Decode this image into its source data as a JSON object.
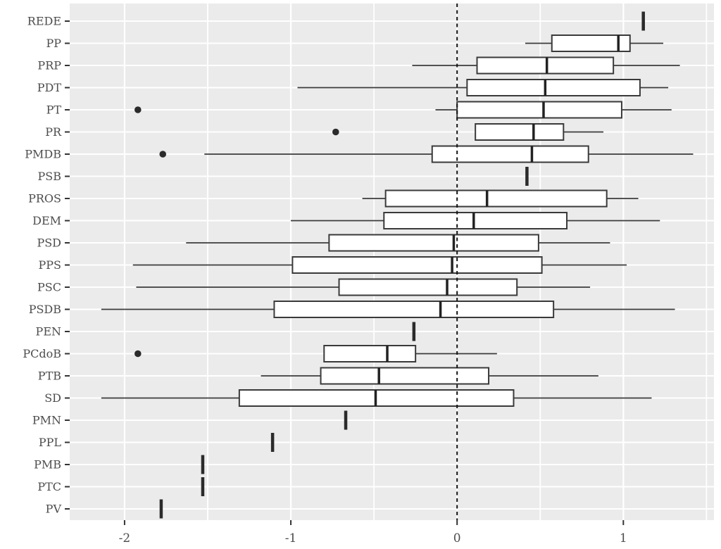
{
  "figure": {
    "background": "#FFFFFF",
    "panel_background": "#EBEBEB",
    "grid_color": "#FFFFFF",
    "box_fill": "#FFFFFF",
    "box_stroke": "#3A3A3A",
    "median_color": "#222222",
    "point_color": "#2B2B2B",
    "axis_text_color": "#4D4D4D",
    "tick_color": "#333333",
    "reference_line_color": "#141414"
  },
  "chart_data": {
    "type": "boxplot",
    "orientation": "horizontal",
    "title": "",
    "xlabel": "",
    "ylabel": "",
    "x_range": [
      -2.33,
      1.545
    ],
    "x_major_ticks": [
      -2,
      -1,
      0,
      1
    ],
    "x_major_tick_labels": [
      "-2",
      "-1",
      "0",
      "1"
    ],
    "x_minor_ticks": [
      -1.5,
      -0.5,
      0.5,
      1.5
    ],
    "reference_line_x": 0,
    "grid": true,
    "legend": "none",
    "categories": [
      "REDE",
      "PP",
      "PRP",
      "PDT",
      "PT",
      "PR",
      "PMDB",
      "PSB",
      "PROS",
      "DEM",
      "PSD",
      "PPS",
      "PSC",
      "PSDB",
      "PEN",
      "PCdoB",
      "PTB",
      "SD",
      "PMN",
      "PPL",
      "PMB",
      "PTC",
      "PV"
    ],
    "series": [
      {
        "label": "REDE",
        "point": 1.12
      },
      {
        "label": "PP",
        "min": 0.41,
        "q1": 0.57,
        "median": 0.97,
        "q3": 1.04,
        "max": 1.24,
        "outliers": []
      },
      {
        "label": "PRP",
        "min": -0.27,
        "q1": 0.12,
        "median": 0.54,
        "q3": 0.94,
        "max": 1.34,
        "outliers": []
      },
      {
        "label": "PDT",
        "min": -0.96,
        "q1": 0.06,
        "median": 0.53,
        "q3": 1.1,
        "max": 1.27,
        "outliers": []
      },
      {
        "label": "PT",
        "min": -0.13,
        "q1": 0.0,
        "median": 0.52,
        "q3": 0.99,
        "max": 1.29,
        "outliers": [
          -1.92
        ]
      },
      {
        "label": "PR",
        "min": 0.11,
        "q1": 0.11,
        "median": 0.46,
        "q3": 0.64,
        "max": 0.88,
        "outliers": [
          -0.73
        ]
      },
      {
        "label": "PMDB",
        "min": -1.52,
        "q1": -0.15,
        "median": 0.45,
        "q3": 0.79,
        "max": 1.42,
        "outliers": [
          -1.77
        ]
      },
      {
        "label": "PSB",
        "point": 0.42
      },
      {
        "label": "PROS",
        "min": -0.57,
        "q1": -0.43,
        "median": 0.18,
        "q3": 0.9,
        "max": 1.09,
        "outliers": []
      },
      {
        "label": "DEM",
        "min": -1.0,
        "q1": -0.44,
        "median": 0.1,
        "q3": 0.66,
        "max": 1.22,
        "outliers": []
      },
      {
        "label": "PSD",
        "min": -1.63,
        "q1": -0.77,
        "median": -0.02,
        "q3": 0.49,
        "max": 0.92,
        "outliers": []
      },
      {
        "label": "PPS",
        "min": -1.95,
        "q1": -0.99,
        "median": -0.03,
        "q3": 0.51,
        "max": 1.02,
        "outliers": []
      },
      {
        "label": "PSC",
        "min": -1.93,
        "q1": -0.71,
        "median": -0.06,
        "q3": 0.36,
        "max": 0.8,
        "outliers": []
      },
      {
        "label": "PSDB",
        "min": -2.14,
        "q1": -1.1,
        "median": -0.1,
        "q3": 0.58,
        "max": 1.31,
        "outliers": []
      },
      {
        "label": "PEN",
        "point": -0.26
      },
      {
        "label": "PCdoB",
        "min": -0.8,
        "q1": -0.8,
        "median": -0.42,
        "q3": -0.25,
        "max": 0.24,
        "outliers": [
          -1.92
        ]
      },
      {
        "label": "PTB",
        "min": -1.18,
        "q1": -0.82,
        "median": -0.47,
        "q3": 0.19,
        "max": 0.85,
        "outliers": []
      },
      {
        "label": "SD",
        "min": -2.14,
        "q1": -1.31,
        "median": -0.49,
        "q3": 0.34,
        "max": 1.17,
        "outliers": []
      },
      {
        "label": "PMN",
        "point": -0.67
      },
      {
        "label": "PPL",
        "point": -1.11
      },
      {
        "label": "PMB",
        "point": -1.53
      },
      {
        "label": "PTC",
        "point": -1.53
      },
      {
        "label": "PV",
        "point": -1.78
      }
    ]
  }
}
